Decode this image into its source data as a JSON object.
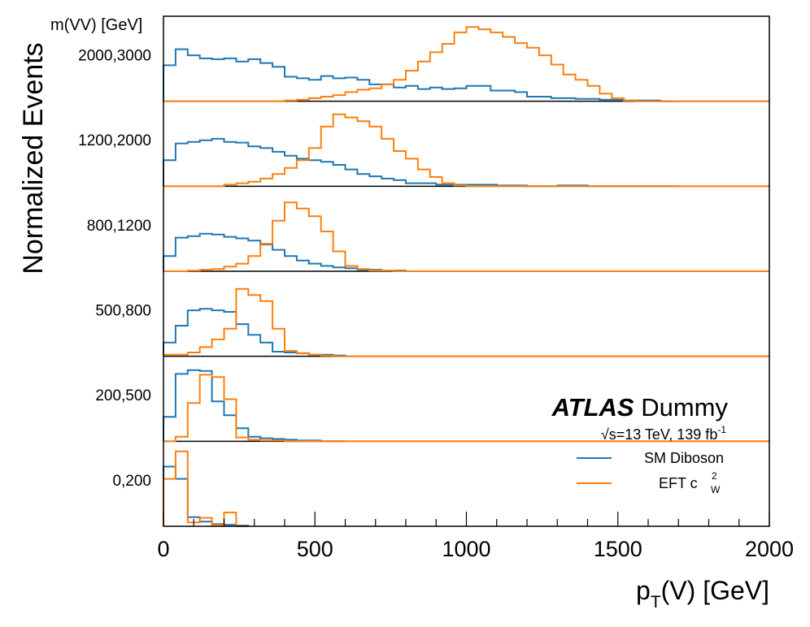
{
  "chart_data": {
    "type": "step",
    "x_axis": {
      "label_main": "p",
      "label_sub": "T",
      "label_rest": "(V) [GeV]",
      "range": [
        0,
        2000
      ],
      "major_ticks": [
        0,
        500,
        1000,
        1500,
        2000
      ],
      "major_tick_labels": [
        "0",
        "500",
        "1000",
        "1500",
        "2000"
      ],
      "minor_step": 100
    },
    "y_axis": {
      "label": "Normalized Events",
      "header": "m(VV) [GeV]"
    },
    "panels": [
      {
        "label": "0,200",
        "series": {
          "sm": {
            "edges": [
              0,
              40,
              80,
              120,
              160,
              200,
              240,
              280
            ],
            "values": [
              0.78,
              0.62,
              0.12,
              0.06,
              0.03,
              0.02,
              0.01
            ]
          },
          "eft": {
            "edges": [
              0,
              40,
              80,
              120,
              160,
              200,
              240,
              280
            ],
            "values": [
              0.62,
              0.98,
              0.05,
              0.11,
              0.02,
              0.18,
              0.0
            ]
          }
        }
      },
      {
        "label": "200,500",
        "series": {
          "sm": {
            "edges": [
              0,
              40,
              80,
              120,
              160,
              200,
              240,
              280,
              320,
              360,
              400,
              440,
              480,
              520,
              560,
              600
            ],
            "values": [
              0.32,
              0.88,
              0.93,
              0.92,
              0.52,
              0.34,
              0.17,
              0.06,
              0.04,
              0.03,
              0.02,
              0.01,
              0.01,
              0.0,
              0.0
            ]
          },
          "eft": {
            "edges": [
              0,
              40,
              80,
              120,
              160,
              200,
              240,
              280,
              320,
              360,
              400,
              440,
              480,
              520,
              560,
              600,
              700,
              800,
              900,
              1000,
              1100,
              1200,
              1300,
              1400,
              1500,
              1600,
              1700,
              1800,
              1900,
              2000
            ],
            "values": [
              0.0,
              0.06,
              0.5,
              0.87,
              0.84,
              0.55,
              0.05,
              0.02,
              0.01,
              0.01,
              0.0,
              0.0,
              0.0,
              0.0,
              0.0,
              0.0,
              0.0,
              0.0,
              0.0,
              0.0,
              0.0,
              0.0,
              0.0,
              0.0,
              0.0,
              0.0,
              0.0,
              0.0,
              0.0
            ]
          }
        }
      },
      {
        "label": "500,800",
        "series": {
          "sm": {
            "edges": [
              0,
              40,
              80,
              120,
              160,
              200,
              240,
              280,
              320,
              360,
              400,
              440,
              480,
              520,
              560,
              600
            ],
            "values": [
              0.18,
              0.4,
              0.6,
              0.62,
              0.6,
              0.58,
              0.42,
              0.28,
              0.18,
              0.06,
              0.05,
              0.04,
              0.02,
              0.02,
              0.01
            ]
          },
          "eft": {
            "edges": [
              0,
              80,
              120,
              160,
              200,
              240,
              280,
              320,
              360,
              400,
              440,
              480,
              520,
              560,
              600,
              700,
              800,
              900,
              1000,
              1100,
              1200,
              1300,
              1400,
              1500,
              1600,
              1700,
              1800,
              1900,
              2000
            ],
            "values": [
              0.02,
              0.05,
              0.12,
              0.22,
              0.36,
              0.88,
              0.8,
              0.72,
              0.36,
              0.07,
              0.04,
              0.02,
              0.01,
              0.0,
              0.0,
              0.0,
              0.0,
              0.0,
              0.0,
              0.0,
              0.0,
              0.0,
              0.0,
              0.0,
              0.0,
              0.0,
              0.0,
              0.0
            ]
          }
        }
      },
      {
        "label": "800,1200",
        "series": {
          "sm": {
            "edges": [
              0,
              40,
              80,
              120,
              160,
              200,
              240,
              280,
              320,
              360,
              400,
              440,
              480,
              520,
              560,
              600,
              640,
              680,
              720,
              760,
              800
            ],
            "values": [
              0.2,
              0.44,
              0.46,
              0.49,
              0.48,
              0.45,
              0.43,
              0.4,
              0.35,
              0.28,
              0.2,
              0.14,
              0.1,
              0.07,
              0.05,
              0.04,
              0.02,
              0.02,
              0.01,
              0.01
            ]
          },
          "eft": {
            "edges": [
              0,
              80,
              120,
              160,
              200,
              240,
              280,
              320,
              360,
              400,
              440,
              480,
              520,
              560,
              600,
              640,
              680,
              720,
              760,
              800,
              900,
              1000,
              1100,
              1200,
              1300,
              1400,
              1500,
              1600,
              1700,
              1800,
              1900,
              2000
            ],
            "values": [
              0.0,
              0.01,
              0.02,
              0.03,
              0.06,
              0.1,
              0.2,
              0.36,
              0.66,
              0.9,
              0.82,
              0.72,
              0.52,
              0.26,
              0.07,
              0.03,
              0.01,
              0.01,
              0.0,
              0.0,
              0.0,
              0.0,
              0.0,
              0.0,
              0.0,
              0.0,
              0.0,
              0.0,
              0.0,
              0.0,
              0.0
            ]
          }
        }
      },
      {
        "label": "1200,2000",
        "series": {
          "sm": {
            "edges": [
              0,
              40,
              80,
              120,
              160,
              200,
              240,
              280,
              320,
              360,
              400,
              440,
              480,
              520,
              560,
              600,
              640,
              680,
              720,
              760,
              800,
              900,
              1000,
              1100,
              1200,
              1300,
              1400,
              1500,
              1600,
              1700
            ],
            "values": [
              0.34,
              0.56,
              0.58,
              0.6,
              0.62,
              0.58,
              0.57,
              0.52,
              0.5,
              0.45,
              0.4,
              0.36,
              0.34,
              0.32,
              0.28,
              0.22,
              0.16,
              0.13,
              0.1,
              0.08,
              0.04,
              0.02,
              0.02,
              0.01,
              0.0,
              0.01,
              0.0,
              0.0,
              0.0
            ]
          },
          "eft": {
            "edges": [
              0,
              200,
              240,
              280,
              320,
              360,
              400,
              440,
              480,
              520,
              560,
              600,
              640,
              680,
              720,
              760,
              800,
              840,
              880,
              920,
              960,
              1000,
              1100,
              1200,
              1300,
              1400,
              1500,
              1600,
              1700,
              1800,
              1900,
              2000
            ],
            "values": [
              0.0,
              0.02,
              0.04,
              0.06,
              0.1,
              0.16,
              0.24,
              0.34,
              0.5,
              0.78,
              0.94,
              0.9,
              0.85,
              0.78,
              0.62,
              0.46,
              0.36,
              0.22,
              0.12,
              0.04,
              0.01,
              0.0,
              0.0,
              0.0,
              0.0,
              0.0,
              0.0,
              0.0,
              0.0,
              0.0,
              0.0
            ]
          }
        }
      },
      {
        "label": "2000,3000",
        "series": {
          "sm": {
            "edges": [
              0,
              40,
              80,
              120,
              160,
              200,
              240,
              280,
              320,
              360,
              400,
              440,
              480,
              520,
              560,
              600,
              640,
              680,
              720,
              760,
              800,
              840,
              880,
              920,
              960,
              1000,
              1040,
              1080,
              1120,
              1160,
              1200,
              1240,
              1280,
              1320,
              1360,
              1400,
              1440,
              1480,
              1520,
              1560,
              1600,
              1640,
              1680
            ],
            "values": [
              0.47,
              0.68,
              0.6,
              0.56,
              0.55,
              0.56,
              0.52,
              0.55,
              0.5,
              0.45,
              0.32,
              0.3,
              0.28,
              0.33,
              0.3,
              0.31,
              0.28,
              0.22,
              0.22,
              0.18,
              0.2,
              0.16,
              0.18,
              0.16,
              0.17,
              0.2,
              0.2,
              0.14,
              0.14,
              0.12,
              0.06,
              0.06,
              0.04,
              0.04,
              0.03,
              0.03,
              0.02,
              0.02,
              0.01,
              0.01,
              0.01,
              0.0
            ]
          },
          "eft": {
            "edges": [
              0,
              400,
              440,
              480,
              520,
              560,
              600,
              640,
              680,
              720,
              760,
              800,
              840,
              880,
              920,
              960,
              1000,
              1040,
              1080,
              1120,
              1160,
              1200,
              1240,
              1280,
              1320,
              1360,
              1400,
              1440,
              1480,
              1520,
              1560,
              1600,
              2000
            ],
            "values": [
              0.0,
              0.01,
              0.02,
              0.04,
              0.06,
              0.08,
              0.12,
              0.15,
              0.17,
              0.22,
              0.28,
              0.4,
              0.52,
              0.64,
              0.75,
              0.9,
              0.97,
              0.94,
              0.9,
              0.84,
              0.76,
              0.7,
              0.6,
              0.48,
              0.35,
              0.28,
              0.2,
              0.1,
              0.04,
              0.01,
              0.0,
              0.0
            ]
          }
        }
      }
    ],
    "legend": {
      "position": "bottom-right",
      "entries": [
        {
          "name": "SM Diboson",
          "color": "#1f77b4"
        },
        {
          "name": "EFT c",
          "sup": "2",
          "sub": "W",
          "color": "#ff7f0e"
        }
      ]
    },
    "annotation": {
      "experiment_bold": "ATLAS",
      "experiment_rest": "Dummy",
      "sqrt_symbol": "√",
      "energy_text": "s=13 TeV, 139 fb",
      "lumi_exponent": "-1"
    }
  }
}
